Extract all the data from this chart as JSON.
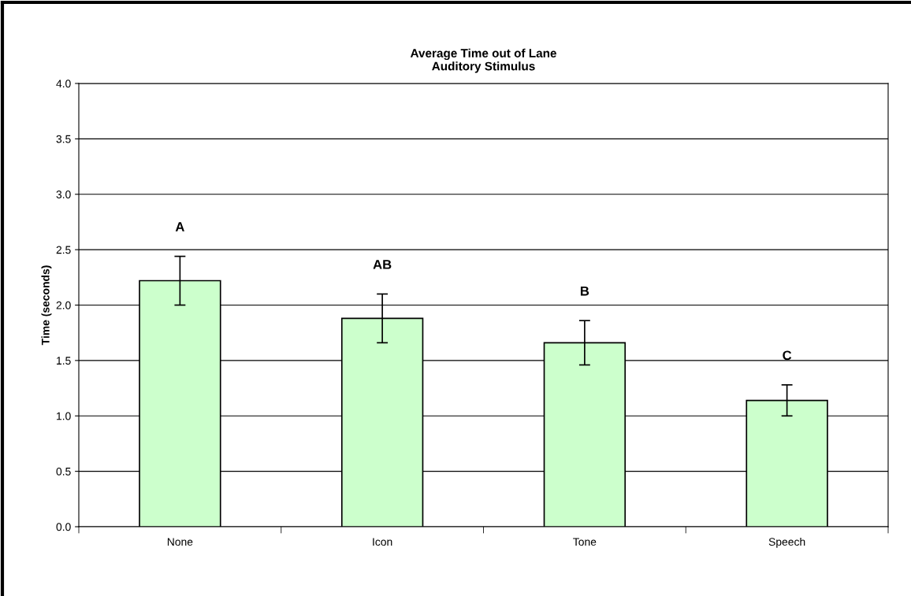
{
  "chart_data": {
    "type": "bar",
    "title": "Average Time out of Lane\nAuditory Stimulus",
    "ylabel": "Time (seconds)",
    "categories": [
      "None",
      "Icon",
      "Tone",
      "Speech"
    ],
    "values": [
      2.22,
      1.88,
      1.66,
      1.14
    ],
    "errors": [
      0.22,
      0.22,
      0.2,
      0.14
    ],
    "color": "#ccffcc",
    "ylim": [
      0,
      4
    ],
    "yticks": [
      {
        "value": 0,
        "label": "0.0"
      },
      {
        "value": 0.5,
        "label": "0.5"
      },
      {
        "value": 1,
        "label": "1.0"
      },
      {
        "value": 1.5,
        "label": "1.5"
      },
      {
        "value": 2,
        "label": "2.0"
      },
      {
        "value": 2.5,
        "label": "2.5"
      },
      {
        "value": 3,
        "label": "3.0"
      },
      {
        "value": 3.5,
        "label": "3.5"
      },
      {
        "value": 4,
        "label": "4.0"
      }
    ],
    "grid": "y",
    "annotations": [
      "A",
      "AB",
      "B",
      "C"
    ]
  }
}
